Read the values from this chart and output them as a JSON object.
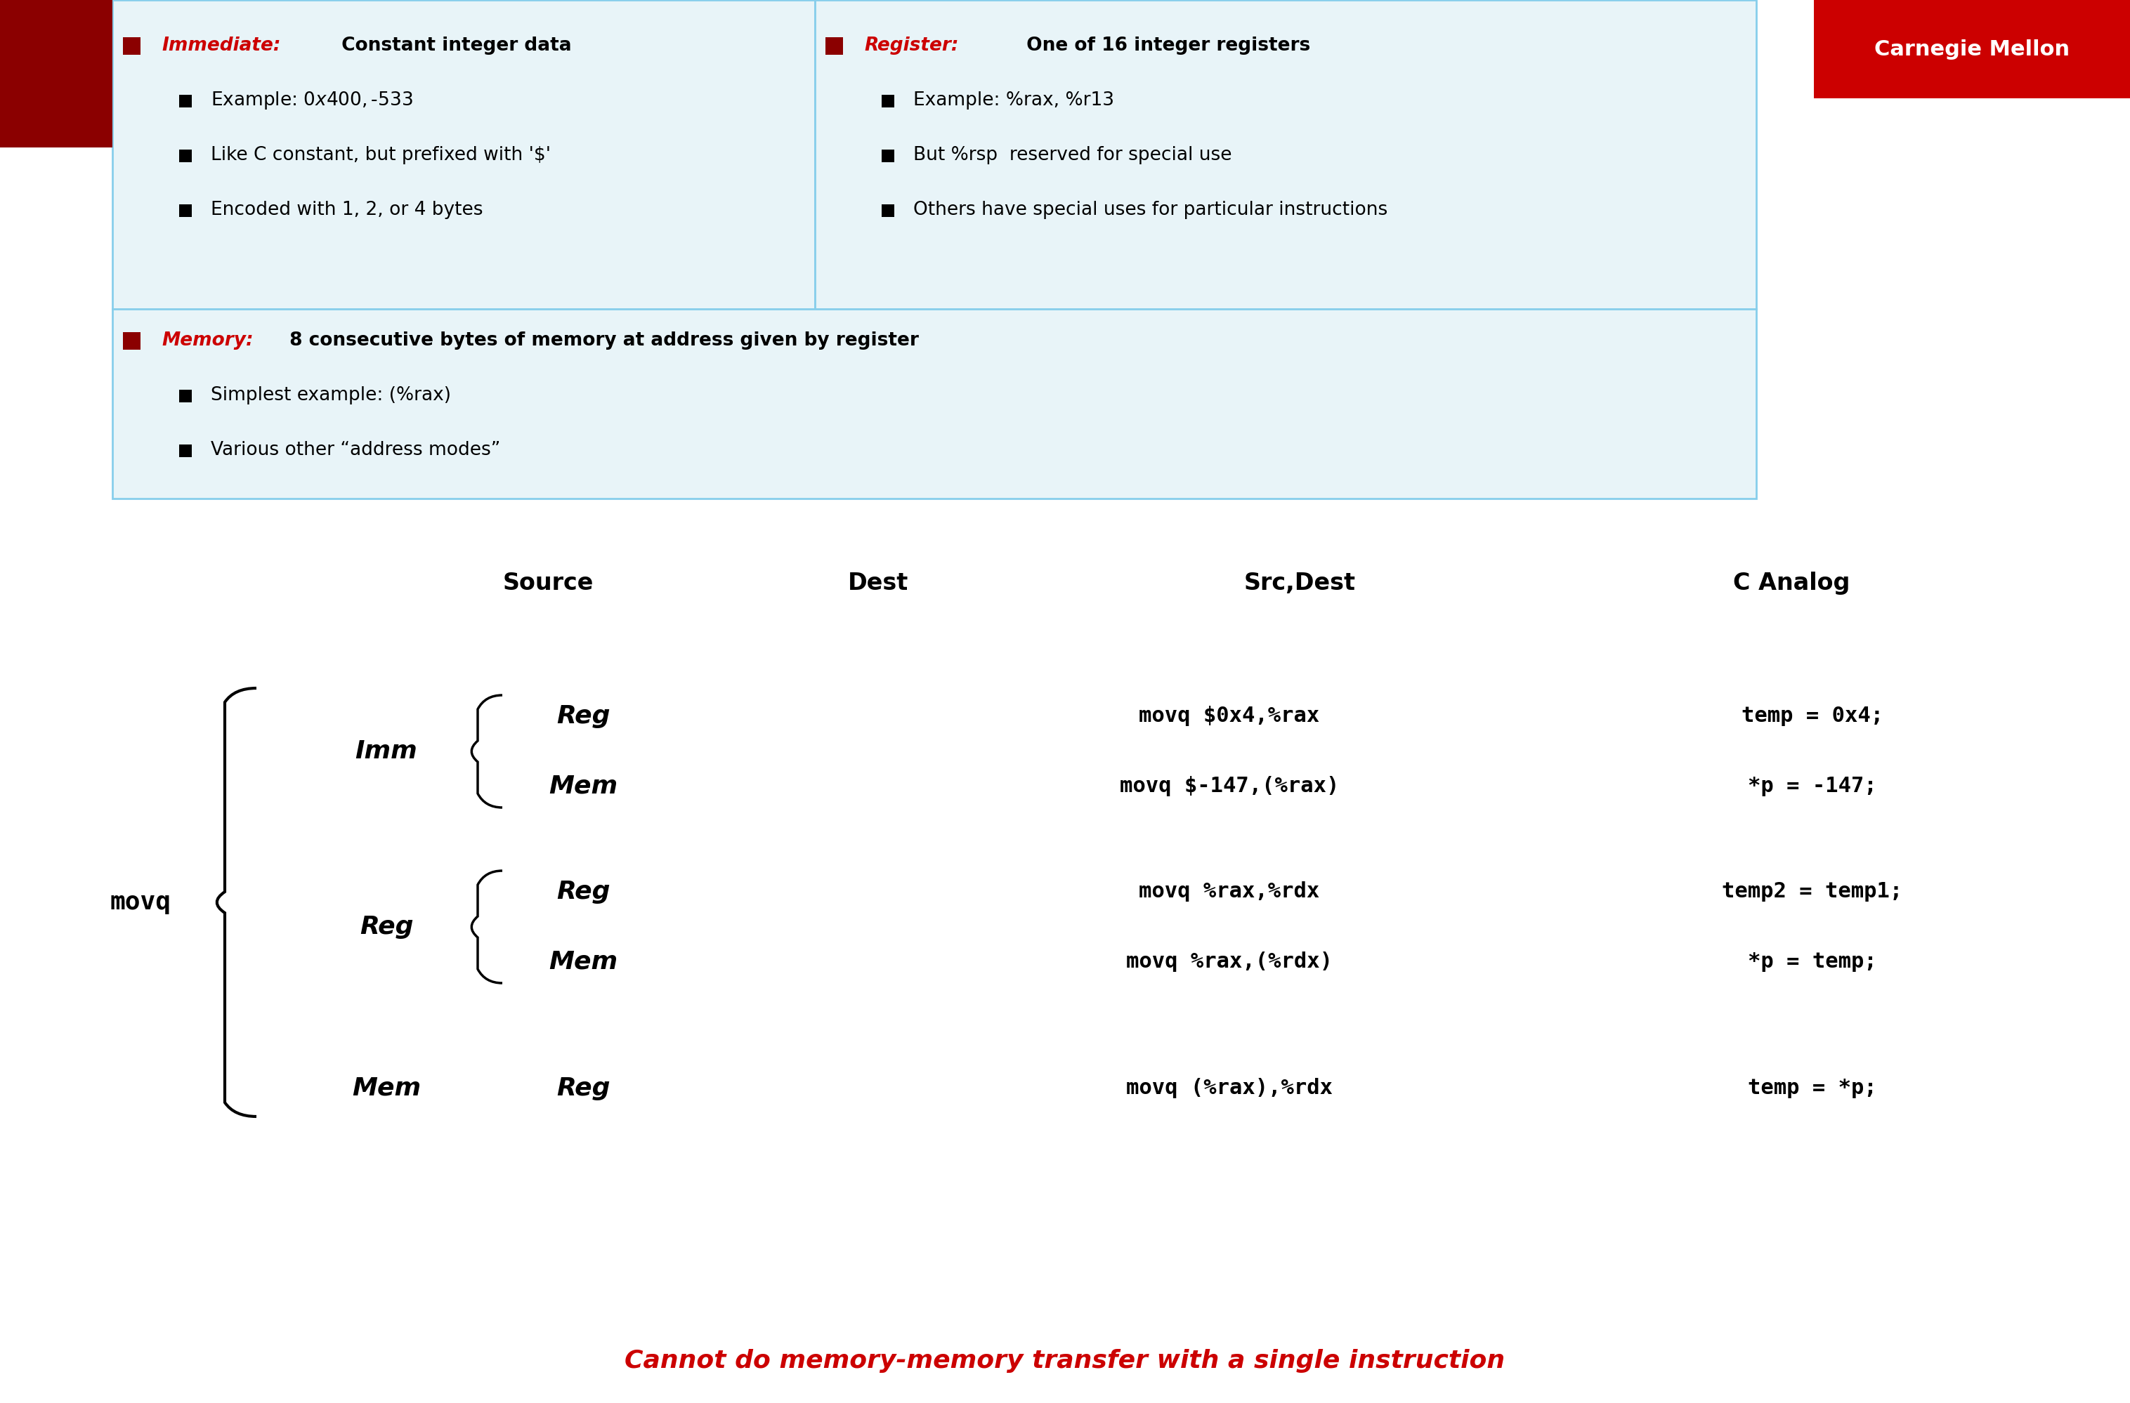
{
  "bg_color": "#ffffff",
  "slide_bg": "#f0f0f0",
  "box1_color": "#e8f4f8",
  "box_border": "#87ceeb",
  "red_sq": "#8b0000",
  "dark_red": "#cc0000",
  "carnegie_bg": "#cc0000",
  "carnegie_text": "#ffffff",
  "carnegie_label": "Carnegie Mellon",
  "header_cols": [
    "Source",
    "Dest",
    "Src,Dest",
    "C Analog"
  ],
  "imm_label": "Imm",
  "reg_label": "Reg",
  "mem_label": "Mem",
  "movq_label": "movq",
  "rows": [
    {
      "src": "Imm",
      "dst": "Reg",
      "asm": "movq $0x4,%rax",
      "c": "temp = 0x4;"
    },
    {
      "src": "Imm",
      "dst": "Mem",
      "asm": "movq $-147,(%rax)",
      "c": "*p = -147;"
    },
    {
      "src": "Reg",
      "dst": "Reg",
      "asm": "movq %rax,%rdx",
      "c": "temp2 = temp1;"
    },
    {
      "src": "Reg",
      "dst": "Mem",
      "asm": "movq %rax,(%rdx)",
      "c": "*p = temp;"
    },
    {
      "src": "Mem",
      "dst": "Reg",
      "asm": "movq (%rax),%rdx",
      "c": "temp = *p;"
    }
  ],
  "footer": "Cannot do memory-memory transfer with a single instruction",
  "footer_color": "#cc0000",
  "box1_lines": [
    {
      "bullet": true,
      "bold_part": "Immediate:",
      "bold_color": "#cc0000",
      "rest": " Constant integer data",
      "indent": 0
    },
    {
      "bullet": false,
      "bold_part": "",
      "bold_color": "",
      "rest": "Example: $0x400, $-533",
      "indent": 1
    },
    {
      "bullet": false,
      "bold_part": "",
      "bold_color": "",
      "rest": "Like C constant, but prefixed with '$'",
      "indent": 1
    },
    {
      "bullet": false,
      "bold_part": "",
      "bold_color": "",
      "rest": "Encoded with 1, 2, or 4 bytes",
      "indent": 1
    }
  ],
  "box2_lines": [
    {
      "bullet": true,
      "bold_part": "Register:",
      "bold_color": "#cc0000",
      "rest": " One of 16 integer registers",
      "indent": 0
    },
    {
      "bullet": false,
      "bold_part": "",
      "bold_color": "",
      "rest": "Example: %rax, %r13",
      "indent": 1
    },
    {
      "bullet": false,
      "bold_part": "",
      "bold_color": "",
      "rest": "But %rsp  reserved for special use",
      "indent": 1
    },
    {
      "bullet": false,
      "bold_part": "",
      "bold_color": "",
      "rest": "Others have special uses for particular instructions",
      "indent": 1
    }
  ],
  "box3_lines": [
    {
      "bullet": true,
      "bold_part": "Memory:",
      "bold_color": "#cc0000",
      "rest": " 8 consecutive bytes of memory at address given by register",
      "indent": 0
    },
    {
      "bullet": false,
      "bold_part": "",
      "bold_color": "",
      "rest": "Simplest example: (%rax)",
      "indent": 1
    },
    {
      "bullet": false,
      "bold_part": "",
      "bold_color": "",
      "rest": "Various other “address modes”",
      "indent": 1
    }
  ]
}
